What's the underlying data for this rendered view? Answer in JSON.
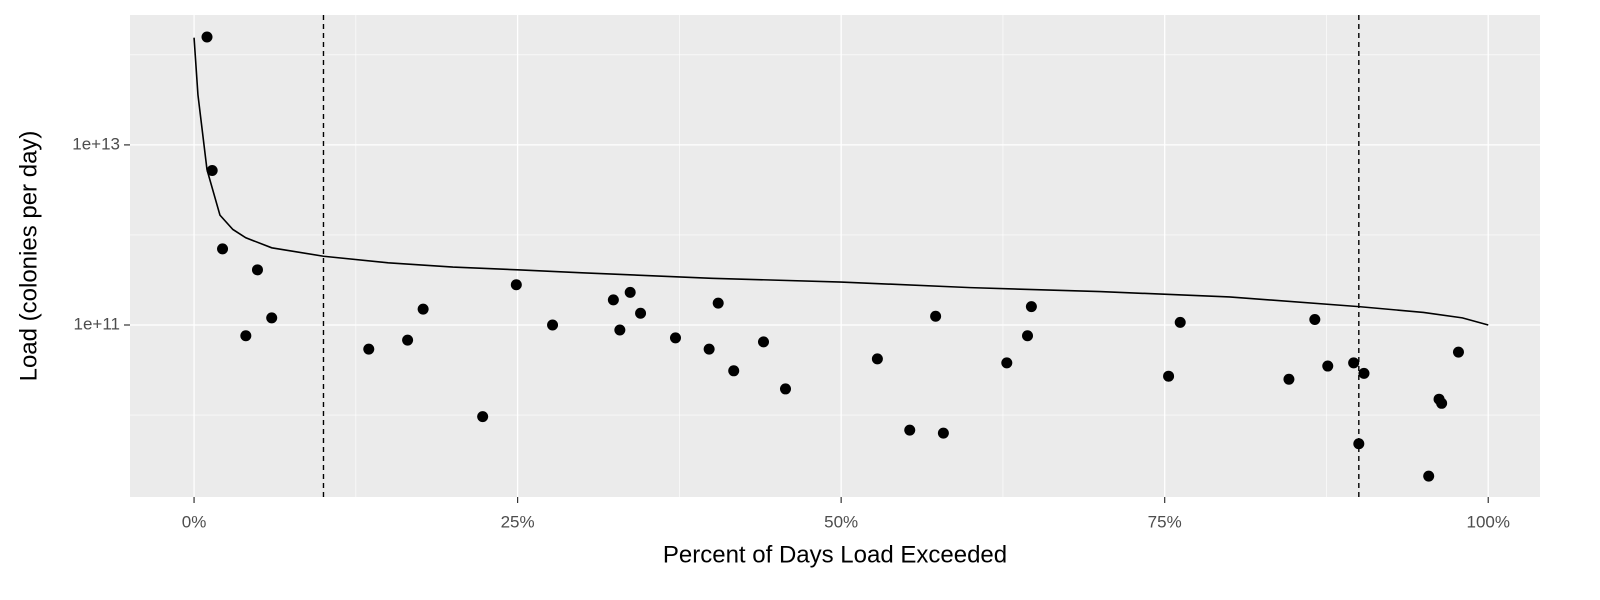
{
  "chart_data": {
    "type": "scatter",
    "x_label": "Percent of Days Load Exceeded",
    "y_label": "Load (colonies per day)",
    "log_y": true,
    "grid": true,
    "color": "#000000",
    "xlim": [
      -4.95,
      104.0
    ],
    "ylim": [
      1230000000.0,
      277000000000000.0
    ],
    "xticks": [
      {
        "value": 0,
        "label": "0%"
      },
      {
        "value": 25,
        "label": "25%"
      },
      {
        "value": 50,
        "label": "50%"
      },
      {
        "value": 75,
        "label": "75%"
      },
      {
        "value": 100,
        "label": "100%"
      }
    ],
    "x_minor_grid": [
      12.5,
      37.5,
      62.5,
      87.5
    ],
    "yticks": [
      {
        "value": 100000000000.0,
        "label": "1e+11"
      },
      {
        "value": 10000000000000.0,
        "label": "1e+13"
      }
    ],
    "y_minor_grid": [
      10000000000.0,
      1000000000000.0,
      100000000000000.0
    ],
    "vlines": [
      10,
      90
    ],
    "line": {
      "x": [
        0,
        0.3,
        1,
        2,
        3,
        4,
        6,
        10,
        15,
        20,
        25,
        30,
        40,
        50,
        60,
        70,
        80,
        90,
        95,
        98,
        100
      ],
      "y": [
        155000000000000.0,
        36000000000000.0,
        5300000000000.0,
        1660000000000.0,
        1150000000000.0,
        930000000000.0,
        720000000000.0,
        580000000000.0,
        490000000000.0,
        440000000000.0,
        410000000000.0,
        380000000000.0,
        330000000000.0,
        300000000000.0,
        260000000000.0,
        235000000000.0,
        205000000000.0,
        160000000000.0,
        138000000000.0,
        120000000000.0,
        100000000000.0
      ]
    },
    "points": {
      "x": [
        1.0,
        1.4,
        2.2,
        4.0,
        4.9,
        6.0,
        13.5,
        16.5,
        17.7,
        22.3,
        24.9,
        27.7,
        32.4,
        32.9,
        33.7,
        34.5,
        37.2,
        39.8,
        40.5,
        41.7,
        44.0,
        45.7,
        52.8,
        55.3,
        57.3,
        57.9,
        62.8,
        64.4,
        64.7,
        75.3,
        76.2,
        84.6,
        86.6,
        87.6,
        89.6,
        90.0,
        90.4,
        95.4,
        96.2,
        96.4,
        97.7
      ],
      "y": [
        158000000000000.0,
        5200000000000.0,
        700000000000.0,
        76000000000.0,
        410000000000.0,
        120000000000.0,
        54000000000.0,
        68000000000.0,
        150000000000.0,
        9600000000.0,
        280000000000.0,
        100000000000.0,
        190000000000.0,
        88000000000.0,
        230000000000.0,
        135000000000.0,
        72000000000.0,
        54000000000.0,
        175000000000.0,
        31000000000.0,
        65000000000.0,
        19500000000.0,
        42000000000.0,
        6800000000.0,
        125000000000.0,
        6300000000.0,
        38000000000.0,
        76000000000.0,
        160000000000.0,
        27000000000.0,
        107000000000.0,
        25000000000.0,
        115000000000.0,
        35000000000.0,
        38000000000.0,
        4800000000.0,
        29000000000.0,
        2100000000.0,
        15000000000.0,
        13500000000.0,
        50000000000.0
      ]
    }
  }
}
